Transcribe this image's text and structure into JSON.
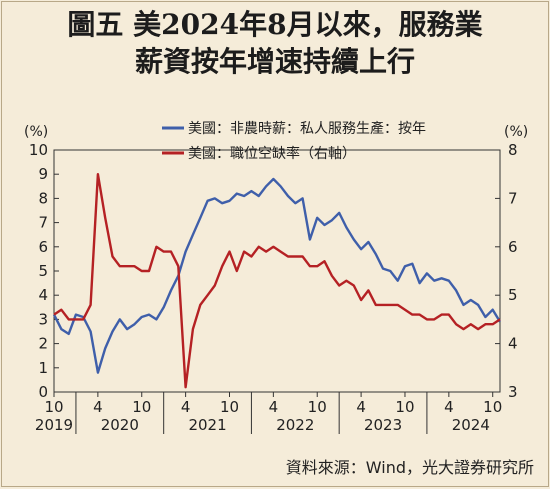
{
  "title": {
    "line1": "圖五  美2024年8月以來，服務業",
    "line2": "薪資按年增速持續上行"
  },
  "source": "資料來源：Wind，光大證券研究所",
  "chart_data": {
    "type": "line",
    "left_axis": {
      "unit_label": "(%)",
      "min": 0,
      "max": 10,
      "ticks": [
        "0",
        "1",
        "2",
        "3",
        "4",
        "5",
        "6",
        "7",
        "8",
        "9",
        "10"
      ]
    },
    "right_axis": {
      "unit_label": "(%)",
      "min": 3,
      "max": 8,
      "ticks": [
        "3",
        "4",
        "5",
        "6",
        "7",
        "8"
      ]
    },
    "x_axis": {
      "start": 2019.75,
      "end": 2024.833,
      "tick_labels": [
        {
          "t": 2019.75,
          "label": "10"
        },
        {
          "t": 2020.25,
          "label": "4"
        },
        {
          "t": 2020.75,
          "label": "10"
        },
        {
          "t": 2021.25,
          "label": "4"
        },
        {
          "t": 2021.75,
          "label": "10"
        },
        {
          "t": 2022.25,
          "label": "4"
        },
        {
          "t": 2022.75,
          "label": "10"
        },
        {
          "t": 2023.25,
          "label": "4"
        },
        {
          "t": 2023.75,
          "label": "10"
        },
        {
          "t": 2024.25,
          "label": "4"
        },
        {
          "t": 2024.75,
          "label": "10"
        }
      ],
      "year_labels": [
        {
          "t": 2019.75,
          "label": "2019"
        },
        {
          "t": 2020.5,
          "label": "2020"
        },
        {
          "t": 2021.5,
          "label": "2021"
        },
        {
          "t": 2022.5,
          "label": "2022"
        },
        {
          "t": 2023.5,
          "label": "2023"
        },
        {
          "t": 2024.5,
          "label": "2024"
        }
      ],
      "year_dividers": [
        2020.0,
        2021.0,
        2022.0,
        2023.0,
        2024.0
      ]
    },
    "series": [
      {
        "name": "美國：非農時薪：私人服務生產：按年",
        "axis": "left",
        "color": "#3f5faa",
        "points": [
          [
            2019.75,
            3.2
          ],
          [
            2019.833,
            2.6
          ],
          [
            2019.917,
            2.4
          ],
          [
            2020.0,
            3.2
          ],
          [
            2020.083,
            3.1
          ],
          [
            2020.167,
            2.5
          ],
          [
            2020.25,
            0.8
          ],
          [
            2020.333,
            1.8
          ],
          [
            2020.417,
            2.5
          ],
          [
            2020.5,
            3.0
          ],
          [
            2020.583,
            2.6
          ],
          [
            2020.667,
            2.8
          ],
          [
            2020.75,
            3.1
          ],
          [
            2020.833,
            3.2
          ],
          [
            2020.917,
            3.0
          ],
          [
            2021.0,
            3.5
          ],
          [
            2021.083,
            4.2
          ],
          [
            2021.167,
            4.8
          ],
          [
            2021.25,
            5.8
          ],
          [
            2021.333,
            6.5
          ],
          [
            2021.417,
            7.2
          ],
          [
            2021.5,
            7.9
          ],
          [
            2021.583,
            8.0
          ],
          [
            2021.667,
            7.8
          ],
          [
            2021.75,
            7.9
          ],
          [
            2021.833,
            8.2
          ],
          [
            2021.917,
            8.1
          ],
          [
            2022.0,
            8.3
          ],
          [
            2022.083,
            8.1
          ],
          [
            2022.167,
            8.5
          ],
          [
            2022.25,
            8.8
          ],
          [
            2022.333,
            8.5
          ],
          [
            2022.417,
            8.1
          ],
          [
            2022.5,
            7.8
          ],
          [
            2022.583,
            8.0
          ],
          [
            2022.667,
            6.3
          ],
          [
            2022.75,
            7.2
          ],
          [
            2022.833,
            6.9
          ],
          [
            2022.917,
            7.1
          ],
          [
            2023.0,
            7.4
          ],
          [
            2023.083,
            6.8
          ],
          [
            2023.167,
            6.3
          ],
          [
            2023.25,
            5.9
          ],
          [
            2023.333,
            6.2
          ],
          [
            2023.417,
            5.7
          ],
          [
            2023.5,
            5.1
          ],
          [
            2023.583,
            5.0
          ],
          [
            2023.667,
            4.6
          ],
          [
            2023.75,
            5.2
          ],
          [
            2023.833,
            5.3
          ],
          [
            2023.917,
            4.5
          ],
          [
            2024.0,
            4.9
          ],
          [
            2024.083,
            4.6
          ],
          [
            2024.167,
            4.7
          ],
          [
            2024.25,
            4.6
          ],
          [
            2024.333,
            4.2
          ],
          [
            2024.417,
            3.6
          ],
          [
            2024.5,
            3.8
          ],
          [
            2024.583,
            3.6
          ],
          [
            2024.667,
            3.1
          ],
          [
            2024.75,
            3.4
          ],
          [
            2024.833,
            2.9
          ]
        ]
      },
      {
        "name": "美國：職位空缺率（右軸）",
        "axis": "right",
        "color": "#b52124",
        "points": [
          [
            2019.75,
            4.6
          ],
          [
            2019.833,
            4.7
          ],
          [
            2019.917,
            4.5
          ],
          [
            2020.0,
            4.5
          ],
          [
            2020.083,
            4.5
          ],
          [
            2020.167,
            4.8
          ],
          [
            2020.25,
            7.5
          ],
          [
            2020.333,
            6.6
          ],
          [
            2020.417,
            5.8
          ],
          [
            2020.5,
            5.6
          ],
          [
            2020.583,
            5.6
          ],
          [
            2020.667,
            5.6
          ],
          [
            2020.75,
            5.5
          ],
          [
            2020.833,
            5.5
          ],
          [
            2020.917,
            6.0
          ],
          [
            2021.0,
            5.9
          ],
          [
            2021.083,
            5.9
          ],
          [
            2021.167,
            5.6
          ],
          [
            2021.25,
            3.1
          ],
          [
            2021.333,
            4.3
          ],
          [
            2021.417,
            4.8
          ],
          [
            2021.5,
            5.0
          ],
          [
            2021.583,
            5.2
          ],
          [
            2021.667,
            5.6
          ],
          [
            2021.75,
            5.9
          ],
          [
            2021.833,
            5.5
          ],
          [
            2021.917,
            5.9
          ],
          [
            2022.0,
            5.8
          ],
          [
            2022.083,
            6.0
          ],
          [
            2022.167,
            5.9
          ],
          [
            2022.25,
            6.0
          ],
          [
            2022.333,
            5.9
          ],
          [
            2022.417,
            5.8
          ],
          [
            2022.5,
            5.8
          ],
          [
            2022.583,
            5.8
          ],
          [
            2022.667,
            5.6
          ],
          [
            2022.75,
            5.6
          ],
          [
            2022.833,
            5.7
          ],
          [
            2022.917,
            5.4
          ],
          [
            2023.0,
            5.2
          ],
          [
            2023.083,
            5.3
          ],
          [
            2023.167,
            5.2
          ],
          [
            2023.25,
            4.9
          ],
          [
            2023.333,
            5.1
          ],
          [
            2023.417,
            4.8
          ],
          [
            2023.5,
            4.8
          ],
          [
            2023.583,
            4.8
          ],
          [
            2023.667,
            4.8
          ],
          [
            2023.75,
            4.7
          ],
          [
            2023.833,
            4.6
          ],
          [
            2023.917,
            4.6
          ],
          [
            2024.0,
            4.5
          ],
          [
            2024.083,
            4.5
          ],
          [
            2024.167,
            4.6
          ],
          [
            2024.25,
            4.6
          ],
          [
            2024.333,
            4.4
          ],
          [
            2024.417,
            4.3
          ],
          [
            2024.5,
            4.4
          ],
          [
            2024.583,
            4.3
          ],
          [
            2024.667,
            4.4
          ],
          [
            2024.75,
            4.4
          ],
          [
            2024.833,
            4.5
          ]
        ]
      }
    ]
  }
}
